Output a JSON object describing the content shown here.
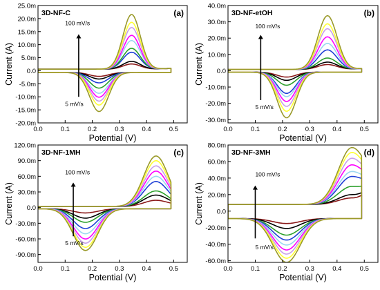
{
  "chart_data": [
    {
      "type": "line",
      "title": "3D-NF-C",
      "panel_letter": "(a)",
      "xlabel": "Potential (V)",
      "ylabel": "Current (A)",
      "xlim": [
        0.0,
        0.55
      ],
      "ylim": [
        -20,
        25
      ],
      "x_ticks": [
        "0.0",
        "0.1",
        "0.2",
        "0.3",
        "0.4",
        "0.5"
      ],
      "y_ticks": [
        "-20.0m",
        "-15.0m",
        "-10.0m",
        "-5.0m",
        "0.0",
        "5.0m",
        "10.0m",
        "15.0m",
        "20.0m",
        "25.0m"
      ],
      "y_tick_values": [
        -20,
        -15,
        -10,
        -5,
        0,
        5,
        10,
        15,
        20,
        25
      ],
      "annotation_top": "100 mV/s",
      "annotation_bottom": "5 mV/s",
      "arrow": {
        "x": 0.15,
        "y_from": -10,
        "y_to": 14
      },
      "annotation_top_pos": {
        "x": 0.1,
        "y": 17.5
      },
      "annotation_bottom_pos": {
        "x": 0.1,
        "y": -13.5
      },
      "shape": {
        "x0": 0.0,
        "x1": 0.49,
        "xa": 0.345,
        "xc": 0.225,
        "wa": 0.032,
        "wc": 0.035,
        "cdl": 0.6,
        "irev": 0.3
      },
      "series": [
        {
          "color": "#8b1a1a",
          "peak_anodic": 2.0,
          "peak_cathodic": -1.5
        },
        {
          "color": "#000000",
          "peak_anodic": 3.0,
          "peak_cathodic": -2.5
        },
        {
          "color": "#1e3fd6",
          "peak_anodic": 6.5,
          "peak_cathodic": -4.0
        },
        {
          "color": "#2ca02c",
          "peak_anodic": 8.0,
          "peak_cathodic": -6.0
        },
        {
          "color": "#9ad7f0",
          "peak_anodic": 11.0,
          "peak_cathodic": -8.0
        },
        {
          "color": "#ff00ff",
          "peak_anodic": 13.0,
          "peak_cathodic": -9.5
        },
        {
          "color": "#c8a0e8",
          "peak_anodic": 16.0,
          "peak_cathodic": -11.0
        },
        {
          "color": "#ffff33",
          "peak_anodic": 18.0,
          "peak_cathodic": -12.5
        },
        {
          "color": "#9a9a2a",
          "peak_anodic": 21.0,
          "peak_cathodic": -15.0
        }
      ]
    },
    {
      "type": "line",
      "title": "3D-NF-etOH",
      "panel_letter": "(b)",
      "xlabel": "Potential (V)",
      "ylabel": "Current (A)",
      "xlim": [
        0.0,
        0.55
      ],
      "ylim": [
        -32,
        40
      ],
      "x_ticks": [
        "0.0",
        "0.1",
        "0.2",
        "0.3",
        "0.4",
        "0.5"
      ],
      "y_ticks": [
        "-30.0m",
        "-20.0m",
        "-10.0m",
        "0.0",
        "10.0m",
        "20.0m",
        "30.0m",
        "40.0m"
      ],
      "y_tick_values": [
        -30,
        -20,
        -10,
        0,
        10,
        20,
        30,
        40
      ],
      "annotation_top": "100 mV/s",
      "annotation_bottom": "5 mV/s",
      "arrow": {
        "x": 0.12,
        "y_from": -18,
        "y_to": 22
      },
      "annotation_top_pos": {
        "x": 0.1,
        "y": 26
      },
      "annotation_bottom_pos": {
        "x": 0.1,
        "y": -23.5
      },
      "shape": {
        "x0": 0.0,
        "x1": 0.49,
        "xa": 0.365,
        "xc": 0.215,
        "wa": 0.035,
        "wc": 0.035,
        "cdl": 0.8,
        "irev": 0.5
      },
      "series": [
        {
          "color": "#8b1a1a",
          "peak_anodic": 3.0,
          "peak_cathodic": -3.0
        },
        {
          "color": "#000000",
          "peak_anodic": 4.5,
          "peak_cathodic": -5.0
        },
        {
          "color": "#2ca02c",
          "peak_anodic": 7.0,
          "peak_cathodic": -8.0
        },
        {
          "color": "#1e3fd6",
          "peak_anodic": 12.0,
          "peak_cathodic": -13.0
        },
        {
          "color": "#9ad7f0",
          "peak_anodic": 16.0,
          "peak_cathodic": -15.0
        },
        {
          "color": "#ff00ff",
          "peak_anodic": 20.0,
          "peak_cathodic": -18.0
        },
        {
          "color": "#c8a0e8",
          "peak_anodic": 25.0,
          "peak_cathodic": -21.0
        },
        {
          "color": "#ffff33",
          "peak_anodic": 28.0,
          "peak_cathodic": -24.0
        },
        {
          "color": "#9a9a2a",
          "peak_anodic": 33.0,
          "peak_cathodic": -28.0
        }
      ]
    },
    {
      "type": "line",
      "title": "3D-NF-1MH",
      "panel_letter": "(c)",
      "xlabel": "Potential (V)",
      "ylabel": "Current (A)",
      "xlim": [
        0.0,
        0.55
      ],
      "ylim": [
        -105,
        120
      ],
      "x_ticks": [
        "0.0",
        "0.1",
        "0.2",
        "0.3",
        "0.4",
        "0.5"
      ],
      "y_ticks": [
        "-90.0m",
        "-60.0m",
        "-30.0m",
        "0.0",
        "30.0m",
        "60.0m",
        "90.0m",
        "120.0m"
      ],
      "y_tick_values": [
        -90,
        -60,
        -30,
        0,
        30,
        60,
        90,
        120
      ],
      "annotation_top": "100 mV/s",
      "annotation_bottom": "5 mV/s",
      "arrow": {
        "x": 0.13,
        "y_from": -55,
        "y_to": 48
      },
      "annotation_top_pos": {
        "x": 0.1,
        "y": 64
      },
      "annotation_bottom_pos": {
        "x": 0.1,
        "y": -72
      },
      "shape": {
        "x0": 0.0,
        "x1": 0.49,
        "xa": 0.435,
        "xc": 0.175,
        "wa": 0.045,
        "wc": 0.045,
        "cdl": 2.0,
        "irev": 1.0
      },
      "series": [
        {
          "color": "#8b1a1a",
          "peak_anodic": 12.0,
          "peak_cathodic": -8.0
        },
        {
          "color": "#000000",
          "peak_anodic": 22.0,
          "peak_cathodic": -18.0
        },
        {
          "color": "#2ca02c",
          "peak_anodic": 30.0,
          "peak_cathodic": -26.0
        },
        {
          "color": "#1e3fd6",
          "peak_anodic": 48.0,
          "peak_cathodic": -38.0
        },
        {
          "color": "#9ad7f0",
          "peak_anodic": 58.0,
          "peak_cathodic": -48.0
        },
        {
          "color": "#ff00ff",
          "peak_anodic": 68.0,
          "peak_cathodic": -58.0
        },
        {
          "color": "#c8a0e8",
          "peak_anodic": 78.0,
          "peak_cathodic": -66.0
        },
        {
          "color": "#ffff33",
          "peak_anodic": 88.0,
          "peak_cathodic": -74.0
        },
        {
          "color": "#9a9a2a",
          "peak_anodic": 97.0,
          "peak_cathodic": -80.0
        }
      ]
    },
    {
      "type": "line",
      "title": "3D-NF-3MH",
      "panel_letter": "(d)",
      "xlabel": "Potential (V)",
      "ylabel": "Current (A)",
      "xlim": [
        0.0,
        0.55
      ],
      "ylim": [
        -62,
        80
      ],
      "x_ticks": [
        "0.0",
        "0.1",
        "0.2",
        "0.3",
        "0.4",
        "0.5"
      ],
      "y_ticks": [
        "-60.0m",
        "-40.0m",
        "-20.0m",
        "0.0",
        "20.0m",
        "40.0m",
        "60.0m",
        "80.0m"
      ],
      "y_tick_values": [
        -60,
        -40,
        -20,
        0,
        20,
        40,
        60,
        80
      ],
      "annotation_top": "100 mV/s",
      "annotation_bottom": "5 mV/s",
      "arrow": {
        "x": 0.1,
        "y_from": -33,
        "y_to": 31
      },
      "annotation_top_pos": {
        "x": 0.1,
        "y": 42
      },
      "annotation_bottom_pos": {
        "x": 0.1,
        "y": -46
      },
      "shape": {
        "x0": 0.0,
        "x1": 0.49,
        "xa": 0.455,
        "xc": 0.215,
        "wa": 0.05,
        "wc": 0.05,
        "cdl": 8.0,
        "irev": 5.0
      },
      "series": [
        {
          "color": "#8b1a1a",
          "peak_anodic": 8.0,
          "peak_cathodic": -6.0
        },
        {
          "color": "#000000",
          "peak_anodic": 12.0,
          "peak_cathodic": -12.0
        },
        {
          "color": "#2ca02c",
          "peak_anodic": 22.0,
          "peak_cathodic": -20.0
        },
        {
          "color": "#1e3fd6",
          "peak_anodic": 34.0,
          "peak_cathodic": -26.0
        },
        {
          "color": "#9ad7f0",
          "peak_anodic": 40.0,
          "peak_cathodic": -32.0
        },
        {
          "color": "#ff00ff",
          "peak_anodic": 48.0,
          "peak_cathodic": -38.0
        },
        {
          "color": "#c8a0e8",
          "peak_anodic": 56.0,
          "peak_cathodic": -43.0
        },
        {
          "color": "#ffff33",
          "peak_anodic": 63.0,
          "peak_cathodic": -48.0
        },
        {
          "color": "#9a9a2a",
          "peak_anodic": 69.0,
          "peak_cathodic": -53.0
        }
      ]
    }
  ]
}
